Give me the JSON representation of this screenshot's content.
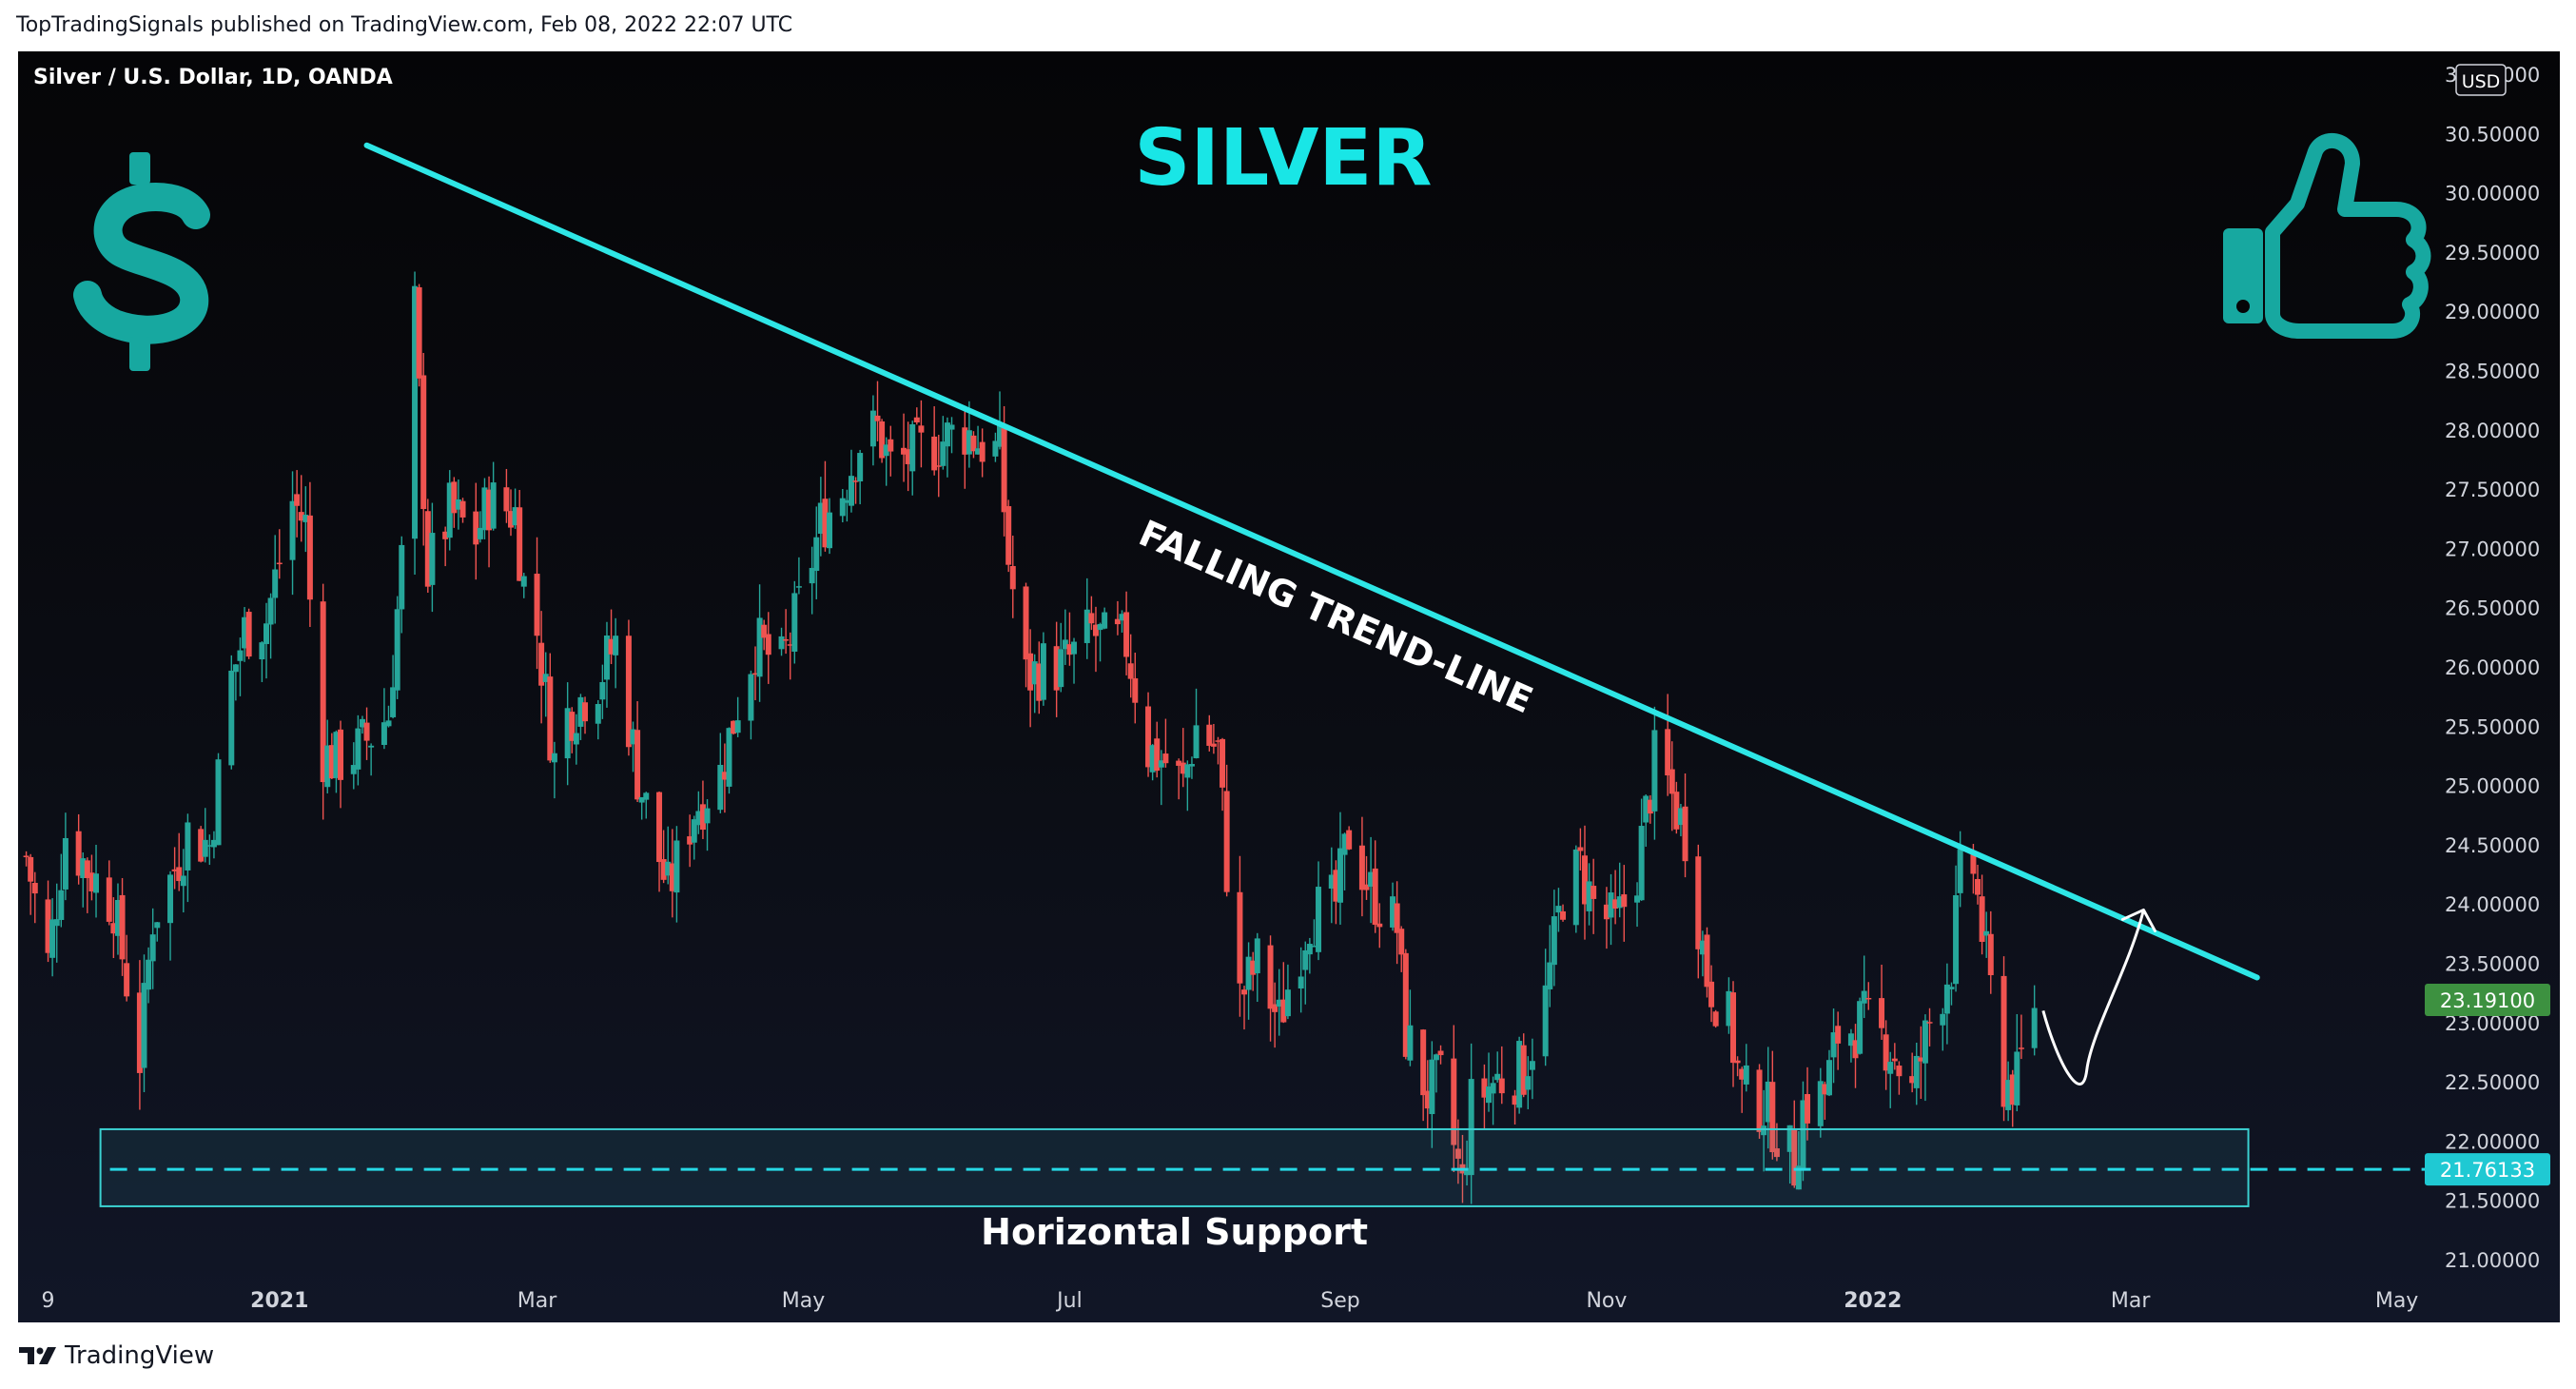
{
  "published": "TopTradingSignals published on TradingView.com, Feb 08, 2022 22:07 UTC",
  "symbol_label": "Silver / U.S. Dollar, 1D, OANDA",
  "branding": "TradingView",
  "currency_badge": "USD",
  "colors": {
    "up": "#26a69a",
    "down": "#ef5350",
    "trendline": "#2ee6e6",
    "title": "#19e6e6",
    "dollar_icon": "#17a8a0",
    "support_box": "#3bd1d1",
    "last_price_bg": "#3d9140",
    "support_price_bg": "#1fc9d3"
  },
  "icons": {
    "dollar": "dollar-sign-icon",
    "thumbs_up": "thumbs-up-icon",
    "logo": "tradingview-logo-icon"
  },
  "chart_data": {
    "type": "candlestick",
    "title": "SILVER",
    "trendline_label": "FALLING TREND-LINE",
    "support_label": "Horizontal Support",
    "x_tick_labels": [
      "9",
      "2021",
      "Mar",
      "May",
      "Jul",
      "Sep",
      "Nov",
      "2022",
      "Mar",
      "May"
    ],
    "y_tick_labels": [
      "31.00000",
      "30.50000",
      "30.00000",
      "29.50000",
      "29.00000",
      "28.50000",
      "28.00000",
      "27.50000",
      "27.00000",
      "26.50000",
      "26.00000",
      "25.50000",
      "25.00000",
      "24.50000",
      "24.00000",
      "23.50000",
      "23.00000",
      "22.50000",
      "22.00000",
      "21.50000",
      "21.00000"
    ],
    "ylim": [
      21.0,
      31.0
    ],
    "x_range": [
      "2020-11-03",
      "2022-04-30"
    ],
    "last_price": "23.19100",
    "support_price": "21.76133",
    "support_zone": [
      21.45,
      22.1
    ],
    "support_zone_dates": [
      "2020-11-21",
      "2022-03-28"
    ],
    "trendline": {
      "start": [
        "2021-01-21",
        30.4
      ],
      "end": [
        "2022-03-30",
        23.38
      ]
    },
    "projection_arrow": {
      "from": [
        "2022-02-09",
        23.1
      ],
      "via": [
        "2022-02-19",
        22.6
      ],
      "to": [
        "2022-03-04",
        23.95
      ]
    },
    "close_path": [
      [
        "2020-11-04",
        24.4
      ],
      [
        "2020-11-09",
        23.5
      ],
      [
        "2020-11-13",
        24.6
      ],
      [
        "2020-11-18",
        24.3
      ],
      [
        "2020-11-24",
        24.0
      ],
      [
        "2020-11-30",
        22.7
      ],
      [
        "2020-12-03",
        23.9
      ],
      [
        "2020-12-07",
        24.2
      ],
      [
        "2020-12-11",
        24.6
      ],
      [
        "2020-12-16",
        24.5
      ],
      [
        "2020-12-21",
        25.9
      ],
      [
        "2020-12-24",
        26.3
      ],
      [
        "2020-12-29",
        26.4
      ],
      [
        "2021-01-04",
        27.4
      ],
      [
        "2021-01-07",
        27.2
      ],
      [
        "2021-01-10",
        25.3
      ],
      [
        "2021-01-14",
        25.2
      ],
      [
        "2021-01-19",
        25.3
      ],
      [
        "2021-01-26",
        25.6
      ],
      [
        "2021-01-29",
        26.9
      ],
      [
        "2021-02-01",
        29.0
      ],
      [
        "2021-02-04",
        26.8
      ],
      [
        "2021-02-09",
        27.3
      ],
      [
        "2021-02-15",
        27.1
      ],
      [
        "2021-02-18",
        27.4
      ],
      [
        "2021-02-24",
        27.3
      ],
      [
        "2021-02-26",
        26.7
      ],
      [
        "2021-03-01",
        26.3
      ],
      [
        "2021-03-05",
        25.2
      ],
      [
        "2021-03-08",
        25.6
      ],
      [
        "2021-03-15",
        25.9
      ],
      [
        "2021-03-19",
        26.2
      ],
      [
        "2021-03-24",
        25.1
      ],
      [
        "2021-03-31",
        24.1
      ],
      [
        "2021-04-06",
        24.8
      ],
      [
        "2021-04-12",
        25.1
      ],
      [
        "2021-04-16",
        25.7
      ],
      [
        "2021-04-20",
        26.2
      ],
      [
        "2021-04-26",
        26.0
      ],
      [
        "2021-04-30",
        26.5
      ],
      [
        "2021-05-05",
        27.2
      ],
      [
        "2021-05-10",
        27.5
      ],
      [
        "2021-05-14",
        27.9
      ],
      [
        "2021-05-18",
        28.0
      ],
      [
        "2021-05-21",
        27.7
      ],
      [
        "2021-05-27",
        27.8
      ],
      [
        "2021-06-01",
        27.9
      ],
      [
        "2021-06-07",
        28.0
      ],
      [
        "2021-06-10",
        27.9
      ],
      [
        "2021-06-15",
        27.8
      ],
      [
        "2021-06-17",
        26.9
      ],
      [
        "2021-06-21",
        25.9
      ],
      [
        "2021-06-25",
        26.0
      ],
      [
        "2021-06-29",
        26.0
      ],
      [
        "2021-07-02",
        26.1
      ],
      [
        "2021-07-06",
        26.3
      ],
      [
        "2021-07-09",
        26.2
      ],
      [
        "2021-07-14",
        26.2
      ],
      [
        "2021-07-19",
        25.3
      ],
      [
        "2021-07-23",
        25.2
      ],
      [
        "2021-07-27",
        25.0
      ],
      [
        "2021-07-30",
        25.5
      ],
      [
        "2021-08-04",
        25.3
      ],
      [
        "2021-08-06",
        24.3
      ],
      [
        "2021-08-09",
        23.2
      ],
      [
        "2021-08-13",
        23.5
      ],
      [
        "2021-08-18",
        23.0
      ],
      [
        "2021-08-20",
        23.3
      ],
      [
        "2021-08-25",
        23.9
      ],
      [
        "2021-08-31",
        24.0
      ],
      [
        "2021-09-03",
        24.6
      ],
      [
        "2021-09-08",
        24.1
      ],
      [
        "2021-09-14",
        23.8
      ],
      [
        "2021-09-16",
        22.9
      ],
      [
        "2021-09-21",
        22.4
      ],
      [
        "2021-09-24",
        22.5
      ],
      [
        "2021-09-29",
        21.6
      ],
      [
        "2021-10-01",
        22.3
      ],
      [
        "2021-10-06",
        22.5
      ],
      [
        "2021-10-13",
        22.6
      ],
      [
        "2021-10-18",
        23.2
      ],
      [
        "2021-10-22",
        24.1
      ],
      [
        "2021-10-26",
        24.3
      ],
      [
        "2021-10-29",
        24.0
      ],
      [
        "2021-11-03",
        23.8
      ],
      [
        "2021-11-08",
        24.3
      ],
      [
        "2021-11-12",
        25.2
      ],
      [
        "2021-11-15",
        25.0
      ],
      [
        "2021-11-19",
        24.6
      ],
      [
        "2021-11-24",
        23.4
      ],
      [
        "2021-11-29",
        23.0
      ],
      [
        "2021-12-02",
        22.4
      ],
      [
        "2021-12-07",
        22.3
      ],
      [
        "2021-12-10",
        22.1
      ],
      [
        "2021-12-14",
        21.8
      ],
      [
        "2021-12-16",
        22.3
      ],
      [
        "2021-12-21",
        22.4
      ],
      [
        "2021-12-24",
        22.9
      ],
      [
        "2021-12-30",
        23.0
      ],
      [
        "2022-01-05",
        22.8
      ],
      [
        "2022-01-10",
        22.4
      ],
      [
        "2022-01-14",
        23.0
      ],
      [
        "2022-01-19",
        23.5
      ],
      [
        "2022-01-21",
        24.2
      ],
      [
        "2022-01-24",
        24.3
      ],
      [
        "2022-01-27",
        23.5
      ],
      [
        "2022-01-31",
        22.5
      ],
      [
        "2022-02-03",
        22.5
      ],
      [
        "2022-02-07",
        23.19
      ]
    ],
    "grid": false,
    "legend": "none"
  }
}
